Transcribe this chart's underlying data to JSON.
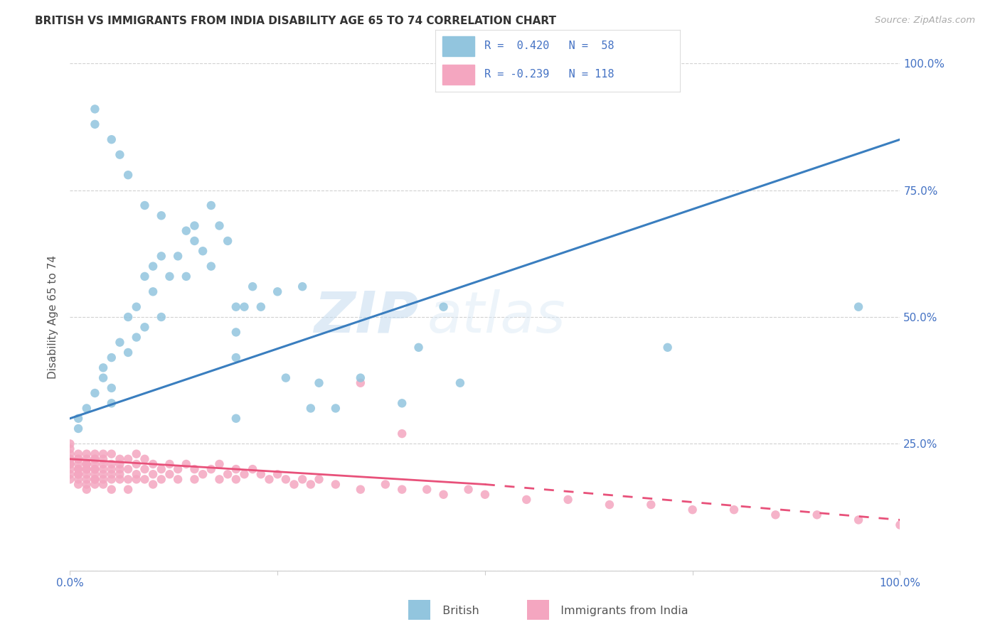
{
  "title": "BRITISH VS IMMIGRANTS FROM INDIA DISABILITY AGE 65 TO 74 CORRELATION CHART",
  "source": "Source: ZipAtlas.com",
  "ylabel": "Disability Age 65 to 74",
  "xlim": [
    0,
    100
  ],
  "ylim": [
    0,
    100
  ],
  "watermark_zip": "ZIP",
  "watermark_atlas": "atlas",
  "blue_color": "#92c5de",
  "pink_color": "#f4a6c0",
  "blue_line_color": "#3a7ebf",
  "pink_line_color": "#e8517a",
  "blue_line_x0": 0,
  "blue_line_y0": 30,
  "blue_line_x1": 100,
  "blue_line_y1": 85,
  "pink_line_x0": 0,
  "pink_line_y0": 22,
  "pink_line_solid_x1": 50,
  "pink_line_solid_y1": 17,
  "pink_line_dash_x1": 100,
  "pink_line_dash_y1": 10,
  "british_x": [
    1,
    1,
    2,
    3,
    4,
    4,
    5,
    5,
    5,
    6,
    7,
    7,
    8,
    8,
    9,
    9,
    10,
    10,
    11,
    11,
    12,
    13,
    14,
    15,
    16,
    17,
    18,
    19,
    20,
    20,
    21,
    22,
    23,
    25,
    26,
    28,
    29,
    30,
    32,
    35,
    40,
    42,
    47,
    72,
    95,
    3,
    3,
    5,
    6,
    7,
    9,
    11,
    14,
    15,
    17,
    20,
    45,
    20
  ],
  "british_y": [
    30,
    28,
    32,
    35,
    40,
    38,
    42,
    36,
    33,
    45,
    50,
    43,
    52,
    46,
    58,
    48,
    60,
    55,
    62,
    50,
    58,
    62,
    58,
    65,
    63,
    60,
    68,
    65,
    42,
    47,
    52,
    56,
    52,
    55,
    38,
    56,
    32,
    37,
    32,
    38,
    33,
    44,
    37,
    44,
    52,
    88,
    91,
    85,
    82,
    78,
    72,
    70,
    67,
    68,
    72,
    52,
    52,
    30
  ],
  "india_x": [
    0,
    0,
    0,
    0,
    0,
    0,
    0,
    0,
    0,
    0,
    1,
    1,
    1,
    1,
    1,
    1,
    1,
    1,
    1,
    1,
    2,
    2,
    2,
    2,
    2,
    2,
    2,
    2,
    2,
    2,
    3,
    3,
    3,
    3,
    3,
    3,
    3,
    3,
    3,
    3,
    4,
    4,
    4,
    4,
    4,
    4,
    4,
    5,
    5,
    5,
    5,
    5,
    5,
    6,
    6,
    6,
    6,
    6,
    7,
    7,
    7,
    7,
    8,
    8,
    8,
    8,
    9,
    9,
    9,
    10,
    10,
    10,
    11,
    11,
    12,
    12,
    13,
    13,
    14,
    15,
    15,
    16,
    17,
    18,
    18,
    19,
    20,
    20,
    21,
    22,
    23,
    24,
    25,
    26,
    27,
    28,
    29,
    30,
    32,
    35,
    38,
    40,
    43,
    45,
    48,
    50,
    55,
    60,
    65,
    70,
    75,
    80,
    85,
    90,
    95,
    100,
    35,
    40
  ],
  "india_y": [
    22,
    24,
    21,
    25,
    20,
    23,
    18,
    22,
    19,
    21,
    20,
    22,
    19,
    23,
    18,
    21,
    20,
    17,
    22,
    19,
    21,
    23,
    20,
    18,
    22,
    19,
    17,
    21,
    20,
    16,
    22,
    20,
    18,
    21,
    23,
    19,
    17,
    20,
    22,
    18,
    21,
    19,
    23,
    20,
    18,
    22,
    17,
    21,
    19,
    23,
    20,
    18,
    16,
    22,
    20,
    18,
    21,
    19,
    20,
    22,
    18,
    16,
    21,
    19,
    23,
    18,
    20,
    22,
    18,
    19,
    21,
    17,
    20,
    18,
    21,
    19,
    20,
    18,
    21,
    20,
    18,
    19,
    20,
    18,
    21,
    19,
    20,
    18,
    19,
    20,
    19,
    18,
    19,
    18,
    17,
    18,
    17,
    18,
    17,
    16,
    17,
    16,
    16,
    15,
    16,
    15,
    14,
    14,
    13,
    13,
    12,
    12,
    11,
    11,
    10,
    9,
    37,
    27
  ],
  "legend_r1": "R =  0.420",
  "legend_n1": "N =  58",
  "legend_r2": "R = -0.239",
  "legend_n2": "N = 118"
}
